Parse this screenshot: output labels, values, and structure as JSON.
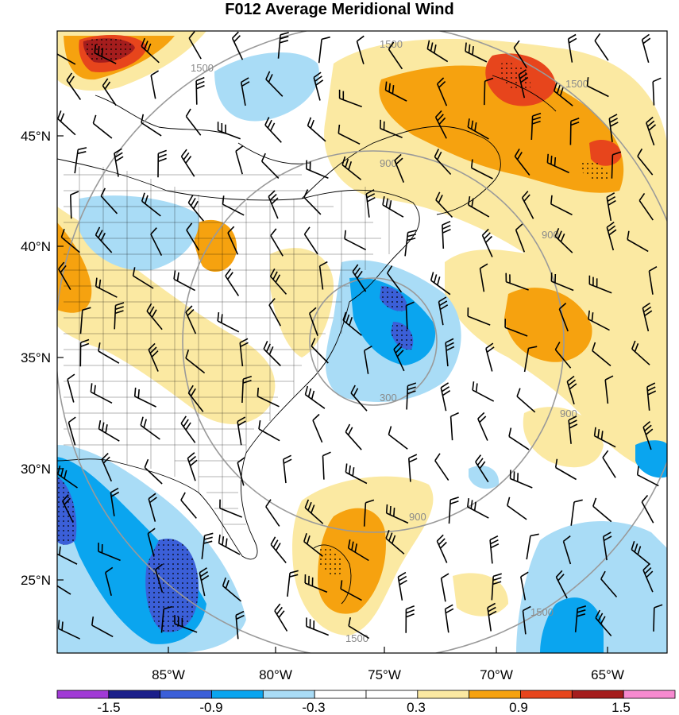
{
  "title": "F012 Average Meridional Wind",
  "colors": {
    "bins": [
      "#a13ad6",
      "#1b1f8a",
      "#3b5fd8",
      "#0aa5ef",
      "#a9dcf6",
      "#ffffff",
      "#ffffff",
      "#fbe9a2",
      "#f6a20f",
      "#e7451c",
      "#a51d1d",
      "#f78ad0"
    ],
    "ring": "#9a9a9a",
    "barb": "#000000",
    "land_outline": "#000000"
  },
  "axes": {
    "lat_labels": [
      "45°N",
      "40°N",
      "35°N",
      "30°N",
      "25°N"
    ],
    "lon_labels": [
      "85°W",
      "80°W",
      "75°W",
      "70°W",
      "65°W"
    ]
  },
  "range_rings": {
    "labels": [
      "300",
      "900",
      "900",
      "900",
      "900",
      "1500",
      "1500",
      "1500",
      "1500",
      "1500"
    ]
  },
  "colorbar": {
    "labels": [
      "-1.5",
      "-0.9",
      "-0.3",
      "0.3",
      "0.9",
      "1.5"
    ]
  }
}
